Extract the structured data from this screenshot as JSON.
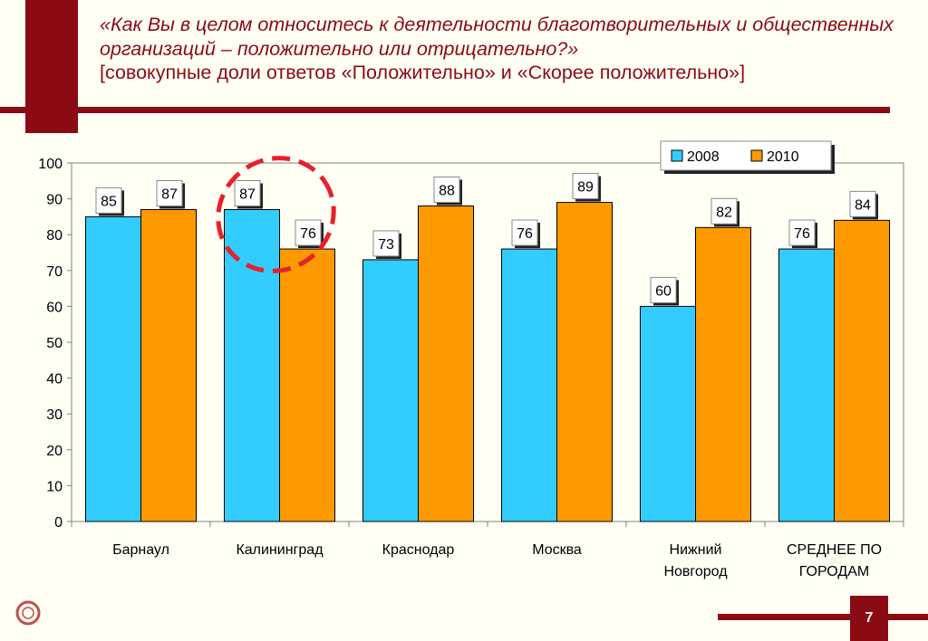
{
  "slide": {
    "title_question": "«Как Вы в целом относитесь к деятельности благотворительных и общественных организаций – положительно или отрицательно?»",
    "title_subtitle": "[совокупные доли ответов «Положительно» и «Скорее положительно»]",
    "page_number": "7",
    "logo_icon": "circular-logo-icon"
  },
  "colors": {
    "accent": "#8b0b14",
    "series_2008": "#33ccff",
    "series_2010": "#ff9900",
    "highlight_ellipse": "#e8202a"
  },
  "chart_data": {
    "type": "bar",
    "categories": [
      [
        "Барнаул"
      ],
      [
        "Калининград"
      ],
      [
        "Краснодар"
      ],
      [
        "Москва"
      ],
      [
        "Нижний",
        "Новгород"
      ],
      [
        "СРЕДНЕЕ ПО",
        "ГОРОДАМ"
      ]
    ],
    "series": [
      {
        "name": "2008",
        "values": [
          85,
          87,
          73,
          76,
          60,
          76
        ]
      },
      {
        "name": "2010",
        "values": [
          87,
          76,
          88,
          89,
          82,
          84
        ]
      }
    ],
    "ylim": [
      0,
      100
    ],
    "yticks": [
      0,
      10,
      20,
      30,
      40,
      50,
      60,
      70,
      80,
      90,
      100
    ],
    "legend_position": "top-right",
    "grid": false,
    "highlighted_category": "Калининград"
  }
}
